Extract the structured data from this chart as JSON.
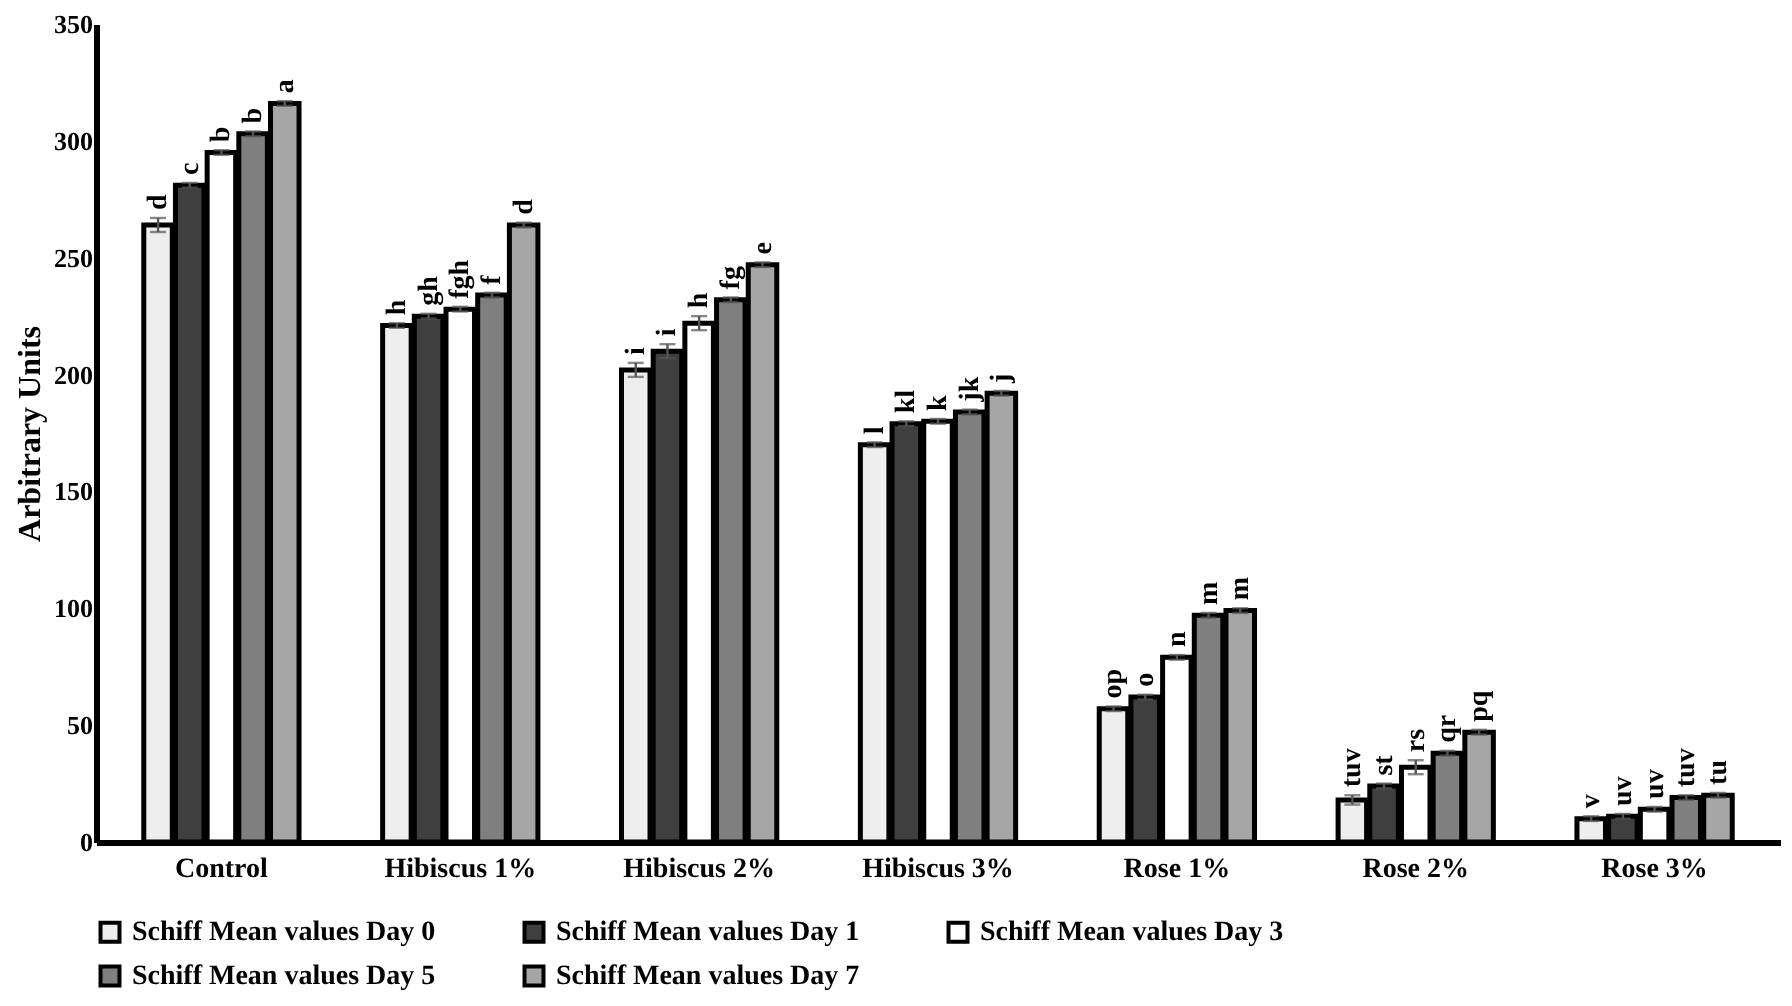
{
  "chart_data": {
    "type": "bar",
    "ylabel": "Arbitrary Units",
    "categories": [
      "Control",
      "Hibiscus 1%",
      "Hibiscus 2%",
      "Hibiscus 3%",
      "Rose 1%",
      "Rose 2%",
      "Rose 3%"
    ],
    "ylim": [
      0,
      350
    ],
    "yticks": [
      0,
      50,
      100,
      150,
      200,
      250,
      300,
      350
    ],
    "grid": false,
    "legend": "bottom",
    "series": [
      {
        "name": "Schiff Mean values Day 0",
        "color": "#eeeeee",
        "values": [
          264,
          221,
          202,
          170,
          57,
          18,
          10
        ],
        "errors": [
          3,
          1,
          3,
          1,
          1,
          2,
          1
        ],
        "value_labels": [
          "d",
          "h",
          "i",
          "l",
          "op",
          "tuv",
          "v"
        ]
      },
      {
        "name": "Schiff Mean values Day 1",
        "color": "#3f3f3f",
        "values": [
          281,
          225,
          210,
          179,
          62,
          24,
          11
        ],
        "errors": [
          1,
          1,
          3,
          1,
          1,
          1,
          1
        ],
        "value_labels": [
          "c",
          "gh",
          "i",
          "kl",
          "o",
          "st",
          "uv"
        ]
      },
      {
        "name": "Schiff Mean values Day 3",
        "color": "#ffffff",
        "values": [
          295,
          228,
          222,
          180,
          79,
          32,
          14
        ],
        "errors": [
          1,
          1,
          3,
          1,
          1,
          3,
          1
        ],
        "value_labels": [
          "b",
          "fgh",
          "h",
          "k",
          "n",
          "rs",
          "uv"
        ]
      },
      {
        "name": "Schiff Mean values Day 5",
        "color": "#7f7f7f",
        "values": [
          303,
          234,
          232,
          184,
          97,
          38,
          19
        ],
        "errors": [
          1,
          1,
          1,
          1,
          1,
          1,
          1
        ],
        "value_labels": [
          "b",
          "f",
          "fg",
          "jk",
          "m",
          "qr",
          "tuv"
        ]
      },
      {
        "name": "Schiff Mean values Day 7",
        "color": "#a6a6a6",
        "values": [
          316,
          264,
          247,
          192,
          99,
          47,
          20
        ],
        "errors": [
          1,
          1,
          1,
          1,
          1,
          1,
          1
        ],
        "value_labels": [
          "a",
          "d",
          "e",
          "j",
          "m",
          "pq",
          "tu"
        ]
      }
    ]
  }
}
